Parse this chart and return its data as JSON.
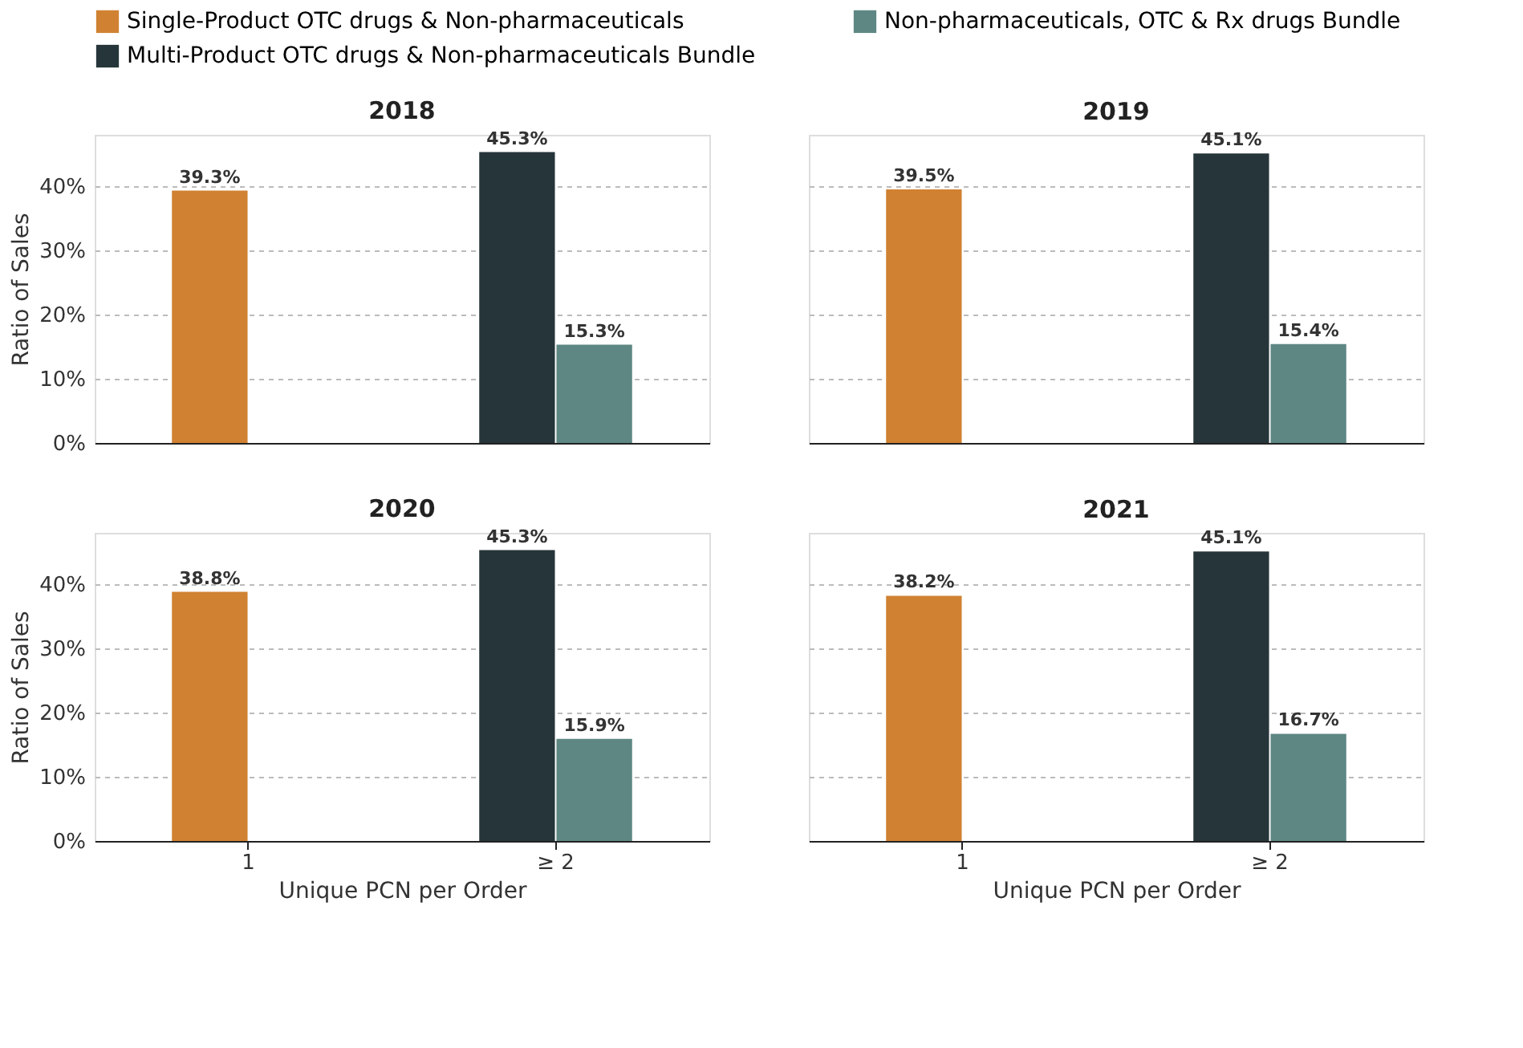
{
  "chart_data": [
    {
      "type": "bar",
      "title": "2018",
      "ylabel": "Ratio of Sales",
      "categories": [
        "1",
        "≥ 2"
      ],
      "ylim": [
        0,
        48
      ],
      "yticks": [
        {
          "value": 0,
          "label": "0%"
        },
        {
          "value": 10,
          "label": "10%"
        },
        {
          "value": 20,
          "label": "20%"
        },
        {
          "value": 30,
          "label": "30%"
        },
        {
          "value": 40,
          "label": "40%"
        }
      ],
      "grid": "y",
      "legend": "top",
      "tick_labels": "y",
      "series": [
        {
          "name": "Single-Product OTC drugs & Non-pharmaceuticals",
          "color": "#d08232",
          "values": [
            39.3,
            null
          ],
          "value_labels": [
            "39.3%",
            null
          ]
        },
        {
          "name": "Multi-Product OTC drugs & Non-pharmaceuticals Bundle",
          "color": "#263539",
          "values": [
            null,
            45.3
          ],
          "value_labels": [
            null,
            "45.3%"
          ]
        },
        {
          "name": "Non-pharmaceuticals, OTC & Rx drugs Bundle",
          "color": "#5e8784",
          "values": [
            null,
            15.3
          ],
          "value_labels": [
            null,
            "15.3%"
          ]
        }
      ]
    },
    {
      "type": "bar",
      "title": "2019",
      "categories": [
        "1",
        "≥ 2"
      ],
      "ylim": [
        0,
        48
      ],
      "yticks": [
        {
          "value": 0,
          "label": "0%"
        },
        {
          "value": 10,
          "label": "10%"
        },
        {
          "value": 20,
          "label": "20%"
        },
        {
          "value": 30,
          "label": "30%"
        },
        {
          "value": 40,
          "label": "40%"
        }
      ],
      "grid": "y",
      "tick_labels": false,
      "series": [
        {
          "name": "Single-Product OTC drugs & Non-pharmaceuticals",
          "color": "#d08232",
          "values": [
            39.5,
            null
          ],
          "value_labels": [
            "39.5%",
            null
          ]
        },
        {
          "name": "Multi-Product OTC drugs & Non-pharmaceuticals Bundle",
          "color": "#263539",
          "values": [
            null,
            45.1
          ],
          "value_labels": [
            null,
            "45.1%"
          ]
        },
        {
          "name": "Non-pharmaceuticals, OTC & Rx drugs Bundle",
          "color": "#5e8784",
          "values": [
            null,
            15.4
          ],
          "value_labels": [
            null,
            "15.4%"
          ]
        }
      ]
    },
    {
      "type": "bar",
      "title": "2020",
      "xlabel": "Unique PCN per Order",
      "ylabel": "Ratio of Sales",
      "categories": [
        "1",
        "≥ 2"
      ],
      "ylim": [
        0,
        48
      ],
      "yticks": [
        {
          "value": 0,
          "label": "0%"
        },
        {
          "value": 10,
          "label": "10%"
        },
        {
          "value": 20,
          "label": "20%"
        },
        {
          "value": 30,
          "label": "30%"
        },
        {
          "value": 40,
          "label": "40%"
        }
      ],
      "grid": "y",
      "series": [
        {
          "name": "Single-Product OTC drugs & Non-pharmaceuticals",
          "color": "#d08232",
          "values": [
            38.8,
            null
          ],
          "value_labels": [
            "38.8%",
            null
          ]
        },
        {
          "name": "Multi-Product OTC drugs & Non-pharmaceuticals Bundle",
          "color": "#263539",
          "values": [
            null,
            45.3
          ],
          "value_labels": [
            null,
            "45.3%"
          ]
        },
        {
          "name": "Non-pharmaceuticals, OTC & Rx drugs Bundle",
          "color": "#5e8784",
          "values": [
            null,
            15.9
          ],
          "value_labels": [
            null,
            "15.9%"
          ]
        }
      ]
    },
    {
      "type": "bar",
      "title": "2021",
      "xlabel": "Unique PCN per Order",
      "categories": [
        "1",
        "≥ 2"
      ],
      "ylim": [
        0,
        48
      ],
      "yticks": [
        {
          "value": 0,
          "label": "0%"
        },
        {
          "value": 10,
          "label": "10%"
        },
        {
          "value": 20,
          "label": "20%"
        },
        {
          "value": 30,
          "label": "30%"
        },
        {
          "value": 40,
          "label": "40%"
        }
      ],
      "grid": "y",
      "tick_labels": "x",
      "series": [
        {
          "name": "Single-Product OTC drugs & Non-pharmaceuticals",
          "color": "#d08232",
          "values": [
            38.2,
            null
          ],
          "value_labels": [
            "38.2%",
            null
          ]
        },
        {
          "name": "Multi-Product OTC drugs & Non-pharmaceuticals Bundle",
          "color": "#263539",
          "values": [
            null,
            45.1
          ],
          "value_labels": [
            null,
            "45.1%"
          ]
        },
        {
          "name": "Non-pharmaceuticals, OTC & Rx drugs Bundle",
          "color": "#5e8784",
          "values": [
            null,
            16.7
          ],
          "value_labels": [
            null,
            "16.7%"
          ]
        }
      ]
    }
  ]
}
